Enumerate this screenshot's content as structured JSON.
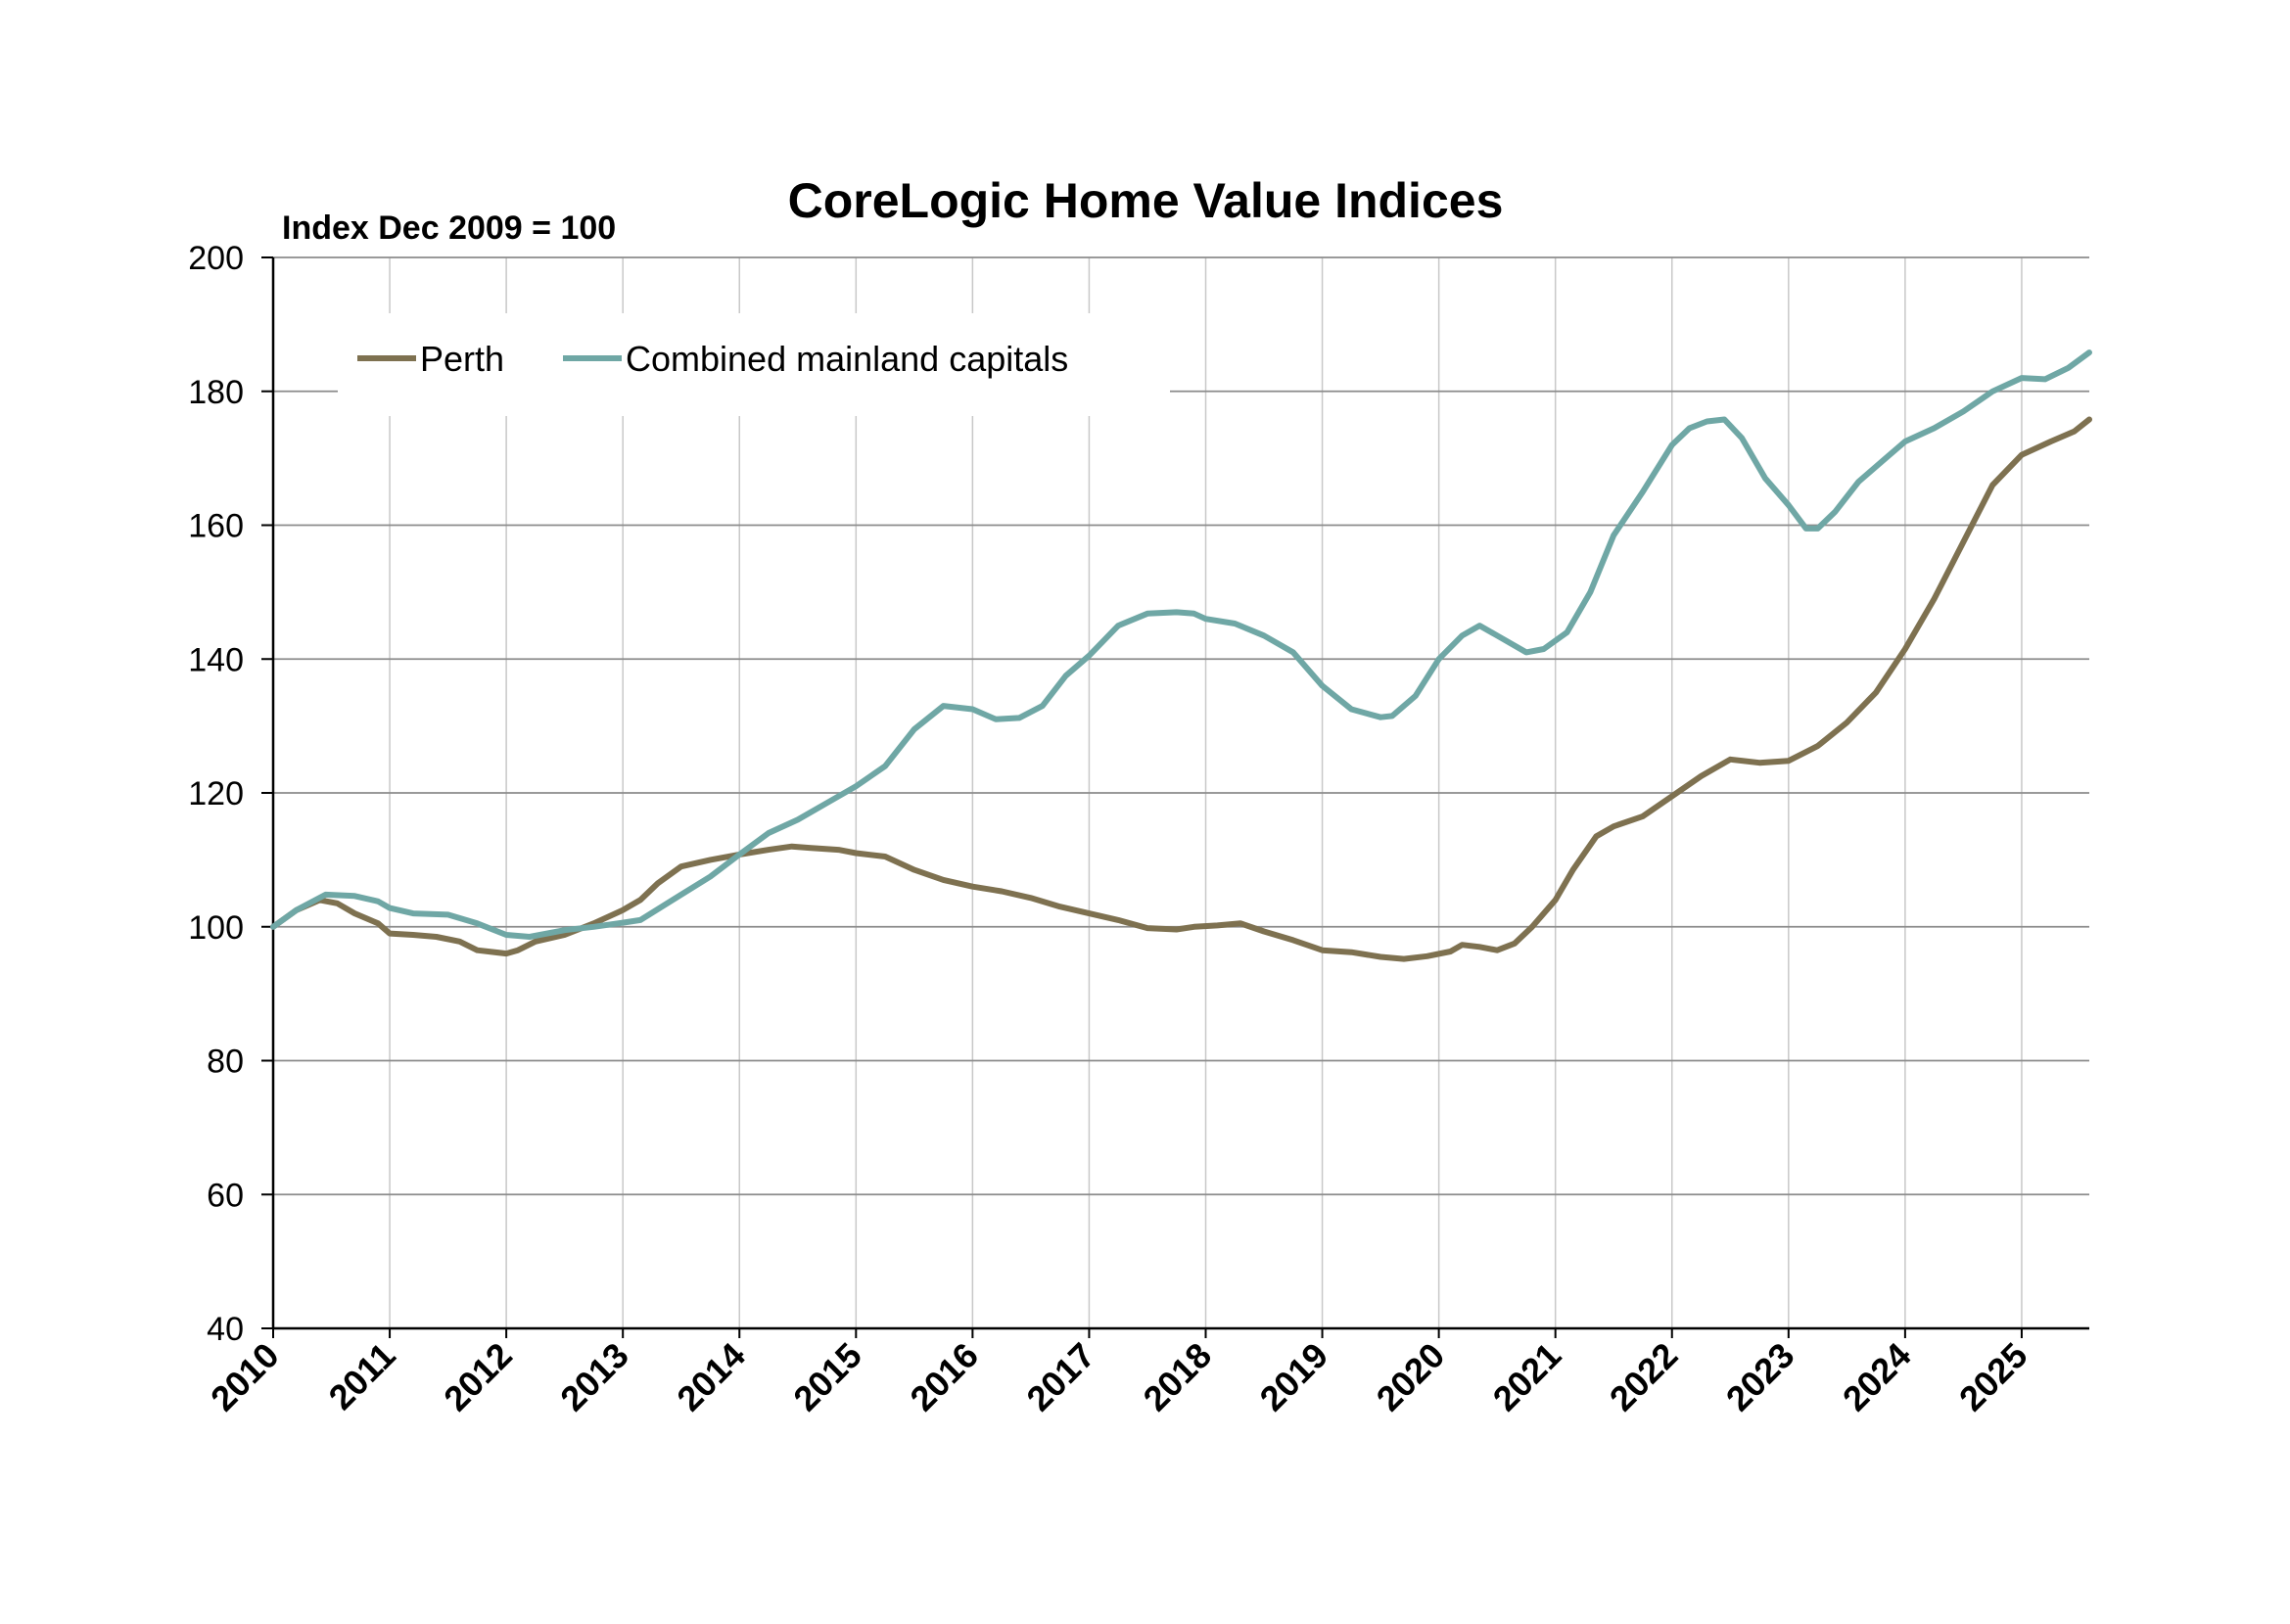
{
  "chart_data": {
    "type": "line",
    "title": "CoreLogic Home Value Indices",
    "ylabel": "Index Dec 2009 = 100",
    "xlabel": "",
    "xlim": [
      2010,
      2025.58
    ],
    "ylim": [
      40,
      200
    ],
    "yticks": [
      40,
      60,
      80,
      100,
      120,
      140,
      160,
      180,
      200
    ],
    "xticks": [
      "2010",
      "2011",
      "2012",
      "2013",
      "2014",
      "2015",
      "2016",
      "2017",
      "2018",
      "2019",
      "2020",
      "2021",
      "2022",
      "2023",
      "2024",
      "2025"
    ],
    "grid": true,
    "legend_position": "top-left",
    "series": [
      {
        "name": "Perth",
        "color": "#7e7150",
        "points": [
          [
            2010.0,
            100.0
          ],
          [
            2010.2,
            102.5
          ],
          [
            2010.4,
            104.0
          ],
          [
            2010.55,
            103.5
          ],
          [
            2010.7,
            102.0
          ],
          [
            2010.9,
            100.5
          ],
          [
            2011.0,
            99.0
          ],
          [
            2011.2,
            98.8
          ],
          [
            2011.4,
            98.5
          ],
          [
            2011.6,
            97.8
          ],
          [
            2011.75,
            96.5
          ],
          [
            2012.0,
            96.0
          ],
          [
            2012.1,
            96.5
          ],
          [
            2012.25,
            97.8
          ],
          [
            2012.5,
            98.8
          ],
          [
            2012.75,
            100.5
          ],
          [
            2013.0,
            102.5
          ],
          [
            2013.15,
            104.0
          ],
          [
            2013.3,
            106.5
          ],
          [
            2013.5,
            109.0
          ],
          [
            2013.75,
            110.0
          ],
          [
            2014.0,
            110.8
          ],
          [
            2014.25,
            111.5
          ],
          [
            2014.45,
            112.0
          ],
          [
            2014.6,
            111.8
          ],
          [
            2014.85,
            111.5
          ],
          [
            2015.0,
            111.0
          ],
          [
            2015.25,
            110.5
          ],
          [
            2015.5,
            108.5
          ],
          [
            2015.75,
            107.0
          ],
          [
            2016.0,
            106.0
          ],
          [
            2016.25,
            105.3
          ],
          [
            2016.5,
            104.3
          ],
          [
            2016.75,
            103.0
          ],
          [
            2017.0,
            102.0
          ],
          [
            2017.25,
            101.0
          ],
          [
            2017.5,
            99.8
          ],
          [
            2017.75,
            99.6
          ],
          [
            2017.9,
            100.0
          ],
          [
            2018.1,
            100.2
          ],
          [
            2018.3,
            100.5
          ],
          [
            2018.5,
            99.3
          ],
          [
            2018.75,
            98.0
          ],
          [
            2019.0,
            96.5
          ],
          [
            2019.25,
            96.2
          ],
          [
            2019.5,
            95.5
          ],
          [
            2019.7,
            95.2
          ],
          [
            2019.9,
            95.6
          ],
          [
            2020.1,
            96.3
          ],
          [
            2020.2,
            97.3
          ],
          [
            2020.35,
            97.0
          ],
          [
            2020.5,
            96.5
          ],
          [
            2020.65,
            97.5
          ],
          [
            2020.8,
            100.0
          ],
          [
            2021.0,
            104.0
          ],
          [
            2021.15,
            108.5
          ],
          [
            2021.35,
            113.5
          ],
          [
            2021.5,
            115.0
          ],
          [
            2021.75,
            116.5
          ],
          [
            2022.0,
            119.5
          ],
          [
            2022.25,
            122.5
          ],
          [
            2022.5,
            125.0
          ],
          [
            2022.75,
            124.5
          ],
          [
            2023.0,
            124.8
          ],
          [
            2023.25,
            127.0
          ],
          [
            2023.5,
            130.5
          ],
          [
            2023.75,
            135.0
          ],
          [
            2024.0,
            141.5
          ],
          [
            2024.25,
            149.0
          ],
          [
            2024.5,
            157.5
          ],
          [
            2024.75,
            166.0
          ],
          [
            2025.0,
            170.5
          ],
          [
            2025.25,
            172.5
          ],
          [
            2025.45,
            174.0
          ],
          [
            2025.58,
            175.8
          ]
        ]
      },
      {
        "name": "Combined mainland capitals",
        "color": "#6fa7a5",
        "points": [
          [
            2010.0,
            100.0
          ],
          [
            2010.2,
            102.5
          ],
          [
            2010.45,
            104.8
          ],
          [
            2010.7,
            104.6
          ],
          [
            2010.9,
            103.8
          ],
          [
            2011.0,
            102.8
          ],
          [
            2011.2,
            102.0
          ],
          [
            2011.5,
            101.8
          ],
          [
            2011.75,
            100.5
          ],
          [
            2012.0,
            98.8
          ],
          [
            2012.2,
            98.5
          ],
          [
            2012.5,
            99.5
          ],
          [
            2012.75,
            100.0
          ],
          [
            2013.0,
            100.6
          ],
          [
            2013.15,
            101.0
          ],
          [
            2013.5,
            104.8
          ],
          [
            2013.75,
            107.5
          ],
          [
            2014.0,
            110.8
          ],
          [
            2014.25,
            114.0
          ],
          [
            2014.5,
            116.0
          ],
          [
            2014.75,
            118.5
          ],
          [
            2015.0,
            121.0
          ],
          [
            2015.25,
            124.0
          ],
          [
            2015.5,
            129.5
          ],
          [
            2015.75,
            133.0
          ],
          [
            2016.0,
            132.5
          ],
          [
            2016.2,
            131.0
          ],
          [
            2016.4,
            131.2
          ],
          [
            2016.6,
            133.0
          ],
          [
            2016.8,
            137.5
          ],
          [
            2017.0,
            140.5
          ],
          [
            2017.25,
            145.0
          ],
          [
            2017.5,
            146.8
          ],
          [
            2017.75,
            147.0
          ],
          [
            2017.9,
            146.8
          ],
          [
            2018.0,
            146.0
          ],
          [
            2018.25,
            145.3
          ],
          [
            2018.5,
            143.5
          ],
          [
            2018.75,
            141.0
          ],
          [
            2019.0,
            136.0
          ],
          [
            2019.25,
            132.5
          ],
          [
            2019.5,
            131.3
          ],
          [
            2019.6,
            131.5
          ],
          [
            2019.8,
            134.5
          ],
          [
            2020.0,
            140.0
          ],
          [
            2020.2,
            143.5
          ],
          [
            2020.35,
            145.0
          ],
          [
            2020.5,
            143.5
          ],
          [
            2020.75,
            141.0
          ],
          [
            2020.9,
            141.5
          ],
          [
            2021.1,
            144.0
          ],
          [
            2021.3,
            150.0
          ],
          [
            2021.5,
            158.5
          ],
          [
            2021.75,
            165.0
          ],
          [
            2022.0,
            172.0
          ],
          [
            2022.15,
            174.5
          ],
          [
            2022.3,
            175.5
          ],
          [
            2022.45,
            175.8
          ],
          [
            2022.6,
            173.0
          ],
          [
            2022.8,
            167.0
          ],
          [
            2023.0,
            163.0
          ],
          [
            2023.15,
            159.5
          ],
          [
            2023.25,
            159.5
          ],
          [
            2023.4,
            162.0
          ],
          [
            2023.6,
            166.5
          ],
          [
            2023.8,
            169.5
          ],
          [
            2024.0,
            172.5
          ],
          [
            2024.25,
            174.5
          ],
          [
            2024.5,
            177.0
          ],
          [
            2024.75,
            180.0
          ],
          [
            2025.0,
            182.0
          ],
          [
            2025.2,
            181.8
          ],
          [
            2025.4,
            183.5
          ],
          [
            2025.58,
            185.8
          ]
        ]
      }
    ]
  }
}
